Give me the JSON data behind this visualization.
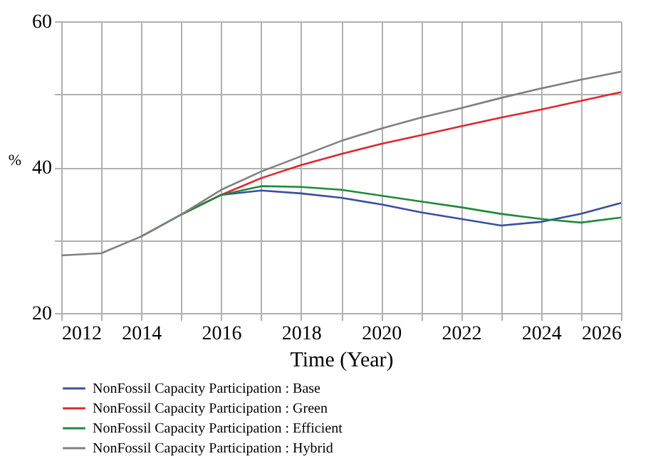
{
  "chart_data": {
    "type": "line",
    "xlabel": "Time (Year)",
    "ylabel": "%",
    "x": [
      2012,
      2013,
      2014,
      2015,
      2016,
      2017,
      2018,
      2019,
      2020,
      2021,
      2022,
      2023,
      2024,
      2025,
      2026
    ],
    "series": [
      {
        "name": "NonFossil Capacity Participation : Base",
        "color": "#3a4fa0",
        "values": [
          null,
          null,
          null,
          33.5,
          36.2,
          36.8,
          36.4,
          35.8,
          34.9,
          33.8,
          32.9,
          32.0,
          32.5,
          33.6,
          35.1
        ]
      },
      {
        "name": "NonFossil Capacity Participation : Green",
        "color": "#e0262e",
        "values": [
          null,
          null,
          null,
          33.5,
          36.2,
          38.5,
          40.3,
          41.8,
          43.2,
          44.4,
          45.6,
          46.8,
          47.9,
          49.1,
          50.3
        ]
      },
      {
        "name": "NonFossil Capacity Participation : Efficient",
        "color": "#1f8a3c",
        "values": [
          null,
          null,
          30.5,
          33.5,
          36.2,
          37.4,
          37.3,
          36.9,
          36.1,
          35.3,
          34.5,
          33.6,
          32.9,
          32.4,
          33.1
        ]
      },
      {
        "name": "NonFossil Capacity Participation : Hybrid",
        "color": "#808080",
        "values": [
          27.9,
          28.2,
          30.5,
          33.5,
          36.9,
          39.4,
          41.5,
          43.6,
          45.3,
          46.8,
          48.1,
          49.5,
          50.8,
          52.0,
          53.1
        ]
      }
    ],
    "xlim": [
      2012,
      2026
    ],
    "ylim": [
      20,
      60
    ],
    "xticks": [
      2012,
      {
        "value": 2013,
        "label": null
      },
      2014,
      {
        "value": 2015,
        "label": null
      },
      2016,
      {
        "value": 2017,
        "label": null
      },
      2018,
      {
        "value": 2019,
        "label": null
      },
      2020,
      {
        "value": 2021,
        "label": null
      },
      2022,
      {
        "value": 2023,
        "label": null
      },
      2024,
      {
        "value": 2025,
        "label": null
      },
      2026
    ],
    "yticks": [
      20,
      {
        "value": 30,
        "label": null
      },
      40,
      {
        "value": 50,
        "label": null
      },
      60
    ],
    "grid": true,
    "legend": "bottom",
    "line_style": "solid",
    "marker": "none"
  }
}
